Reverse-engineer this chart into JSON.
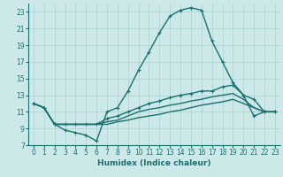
{
  "xlabel": "Humidex (Indice chaleur)",
  "bg_color": "#cce8e8",
  "grid_color": "#aad0d0",
  "line_color": "#1a7070",
  "xlim": [
    -0.5,
    23.5
  ],
  "ylim": [
    7,
    24
  ],
  "yticks": [
    7,
    9,
    11,
    13,
    15,
    17,
    19,
    21,
    23
  ],
  "xticks": [
    0,
    1,
    2,
    3,
    4,
    5,
    6,
    7,
    8,
    9,
    10,
    11,
    12,
    13,
    14,
    15,
    16,
    17,
    18,
    19,
    20,
    21,
    22,
    23
  ],
  "lines": [
    {
      "x": [
        0,
        1,
        2,
        3,
        4,
        5,
        6,
        7,
        8,
        9,
        10,
        11,
        12,
        13,
        14,
        15,
        16,
        17,
        18,
        19,
        20,
        21,
        22,
        23
      ],
      "y": [
        12.0,
        11.5,
        9.5,
        8.8,
        8.5,
        8.2,
        7.5,
        11.0,
        11.5,
        13.5,
        16.0,
        18.2,
        20.5,
        22.5,
        23.2,
        23.5,
        23.2,
        19.5,
        17.0,
        14.5,
        13.0,
        10.5,
        11.0,
        11.0
      ],
      "marker": "+"
    },
    {
      "x": [
        0,
        1,
        2,
        3,
        4,
        5,
        6,
        7,
        8,
        9,
        10,
        11,
        12,
        13,
        14,
        15,
        16,
        17,
        18,
        19,
        20,
        21,
        22,
        23
      ],
      "y": [
        12.0,
        11.5,
        9.5,
        9.5,
        9.5,
        9.5,
        9.5,
        10.2,
        10.5,
        11.0,
        11.5,
        12.0,
        12.3,
        12.7,
        13.0,
        13.2,
        13.5,
        13.5,
        14.0,
        14.2,
        13.0,
        12.5,
        11.0,
        11.0
      ],
      "marker": "+"
    },
    {
      "x": [
        0,
        1,
        2,
        3,
        4,
        5,
        6,
        7,
        8,
        9,
        10,
        11,
        12,
        13,
        14,
        15,
        16,
        17,
        18,
        19,
        20,
        21,
        22,
        23
      ],
      "y": [
        12.0,
        11.5,
        9.5,
        9.5,
        9.5,
        9.5,
        9.5,
        9.8,
        10.0,
        10.5,
        11.0,
        11.3,
        11.5,
        11.8,
        12.0,
        12.3,
        12.5,
        12.8,
        13.0,
        13.2,
        12.5,
        11.5,
        11.0,
        11.0
      ],
      "marker": null
    },
    {
      "x": [
        0,
        1,
        2,
        3,
        4,
        5,
        6,
        7,
        8,
        9,
        10,
        11,
        12,
        13,
        14,
        15,
        16,
        17,
        18,
        19,
        20,
        21,
        22,
        23
      ],
      "y": [
        12.0,
        11.5,
        9.5,
        9.5,
        9.5,
        9.5,
        9.5,
        9.5,
        9.8,
        10.0,
        10.3,
        10.5,
        10.7,
        11.0,
        11.2,
        11.5,
        11.8,
        12.0,
        12.2,
        12.5,
        12.0,
        11.5,
        11.0,
        11.0
      ],
      "marker": null
    }
  ]
}
